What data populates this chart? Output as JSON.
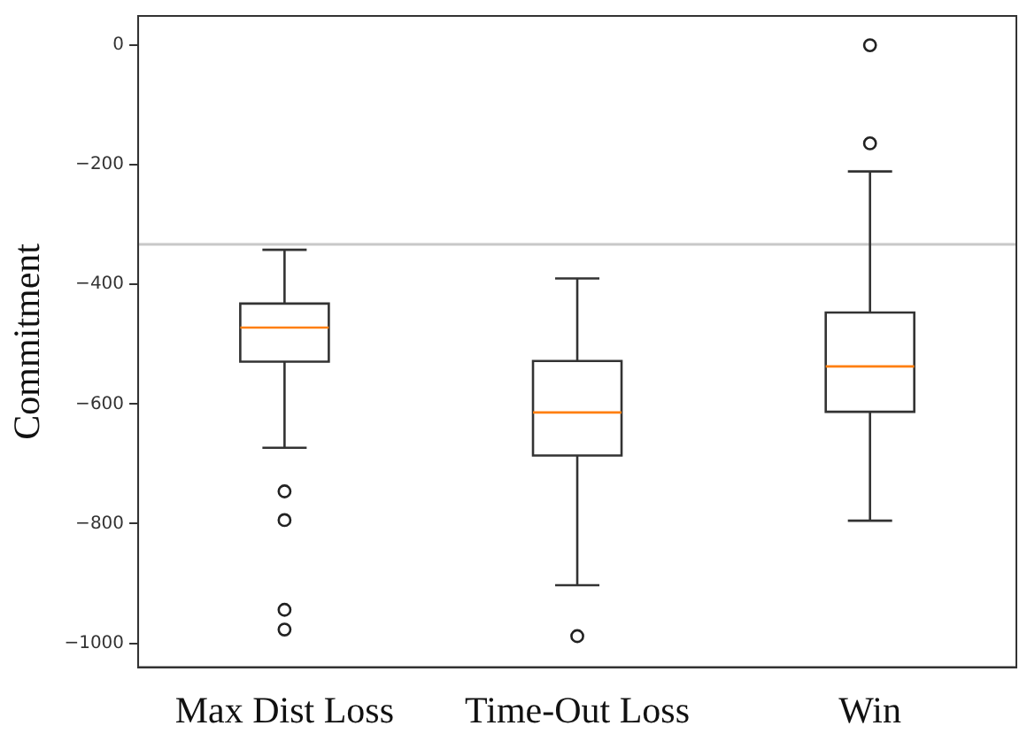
{
  "chart_data": {
    "type": "box",
    "ylabel": "Commitment",
    "categories": [
      "Max Dist Loss",
      "Time-Out Loss",
      "Win"
    ],
    "boxes": [
      {
        "low": -673,
        "q1": -529,
        "median": -472,
        "q3": -432,
        "high": -342,
        "outliers": [
          -746,
          -794,
          -944,
          -977
        ]
      },
      {
        "low": -903,
        "q1": -686,
        "median": -614,
        "q3": -528,
        "high": -390,
        "outliers": [
          -988
        ]
      },
      {
        "low": -795,
        "q1": -613,
        "median": -537,
        "q3": -447,
        "high": -211,
        "outliers": [
          0,
          -164
        ]
      }
    ],
    "ylim": [
      -1040,
      49
    ],
    "yticks": [
      -1000,
      -800,
      -600,
      -400,
      -200,
      0
    ],
    "grid": false,
    "ref_lines": [
      {
        "axis": "y",
        "value": -333,
        "color": "#c8c8c8"
      }
    ]
  }
}
